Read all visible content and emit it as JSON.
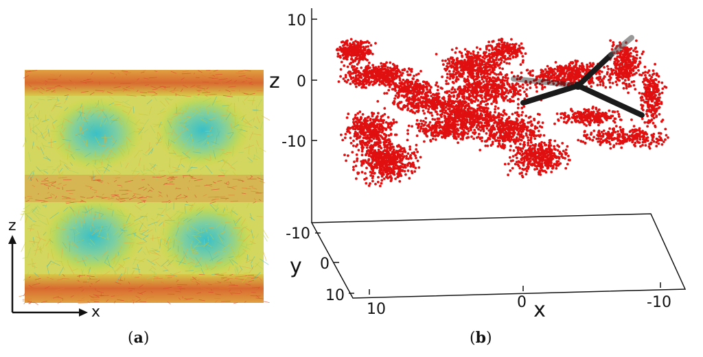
{
  "panel_a": {
    "axis_labels": {
      "z": "z",
      "x": "x"
    },
    "caption": {
      "open": "(",
      "letter": "a",
      "close": ")"
    }
  },
  "panel_b": {
    "axis_labels": {
      "z": "z",
      "y": "y",
      "x": "x"
    },
    "ticks": {
      "z": [
        "10",
        "0",
        "-10"
      ],
      "y": [
        "-10",
        "0",
        "10"
      ],
      "x": [
        "10",
        "0",
        "-10"
      ]
    },
    "caption": {
      "open": "(",
      "letter": "b",
      "close": ")"
    },
    "colors": {
      "points": "#e01010",
      "skeleton": "#1a1a1a"
    }
  }
}
